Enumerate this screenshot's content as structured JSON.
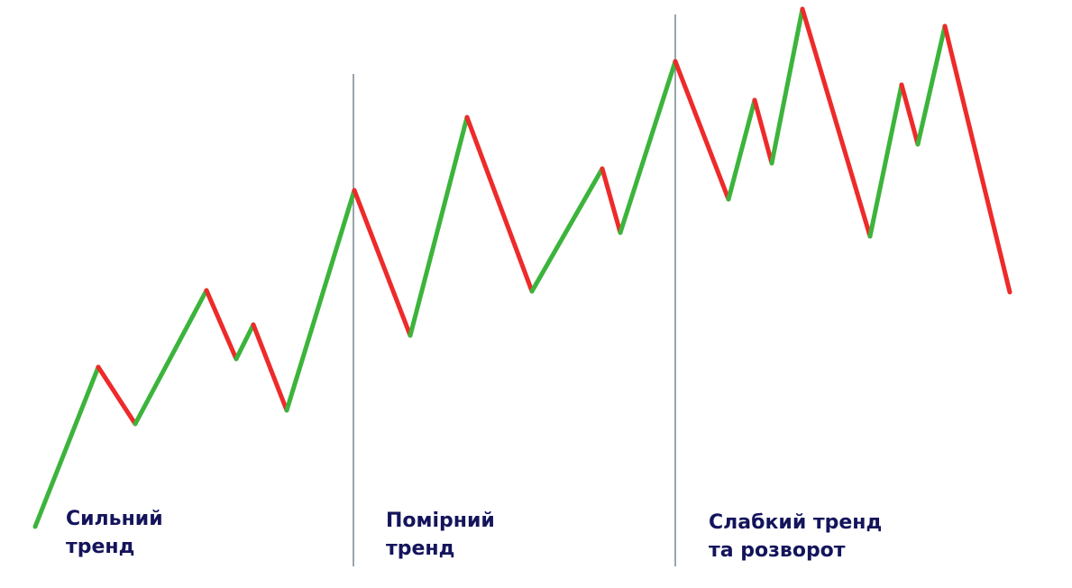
{
  "colors": {
    "up_segment": "#3cb43c",
    "down_segment": "#ee2a2a",
    "divider": "#7a8591",
    "label_text": "#14145c"
  },
  "sections": [
    {
      "line1": "Сильний",
      "line2": "тренд"
    },
    {
      "line1": "Помірний",
      "line2": "тренд"
    },
    {
      "line1": "Слабкий тренд",
      "line2": "та розворот"
    }
  ]
}
